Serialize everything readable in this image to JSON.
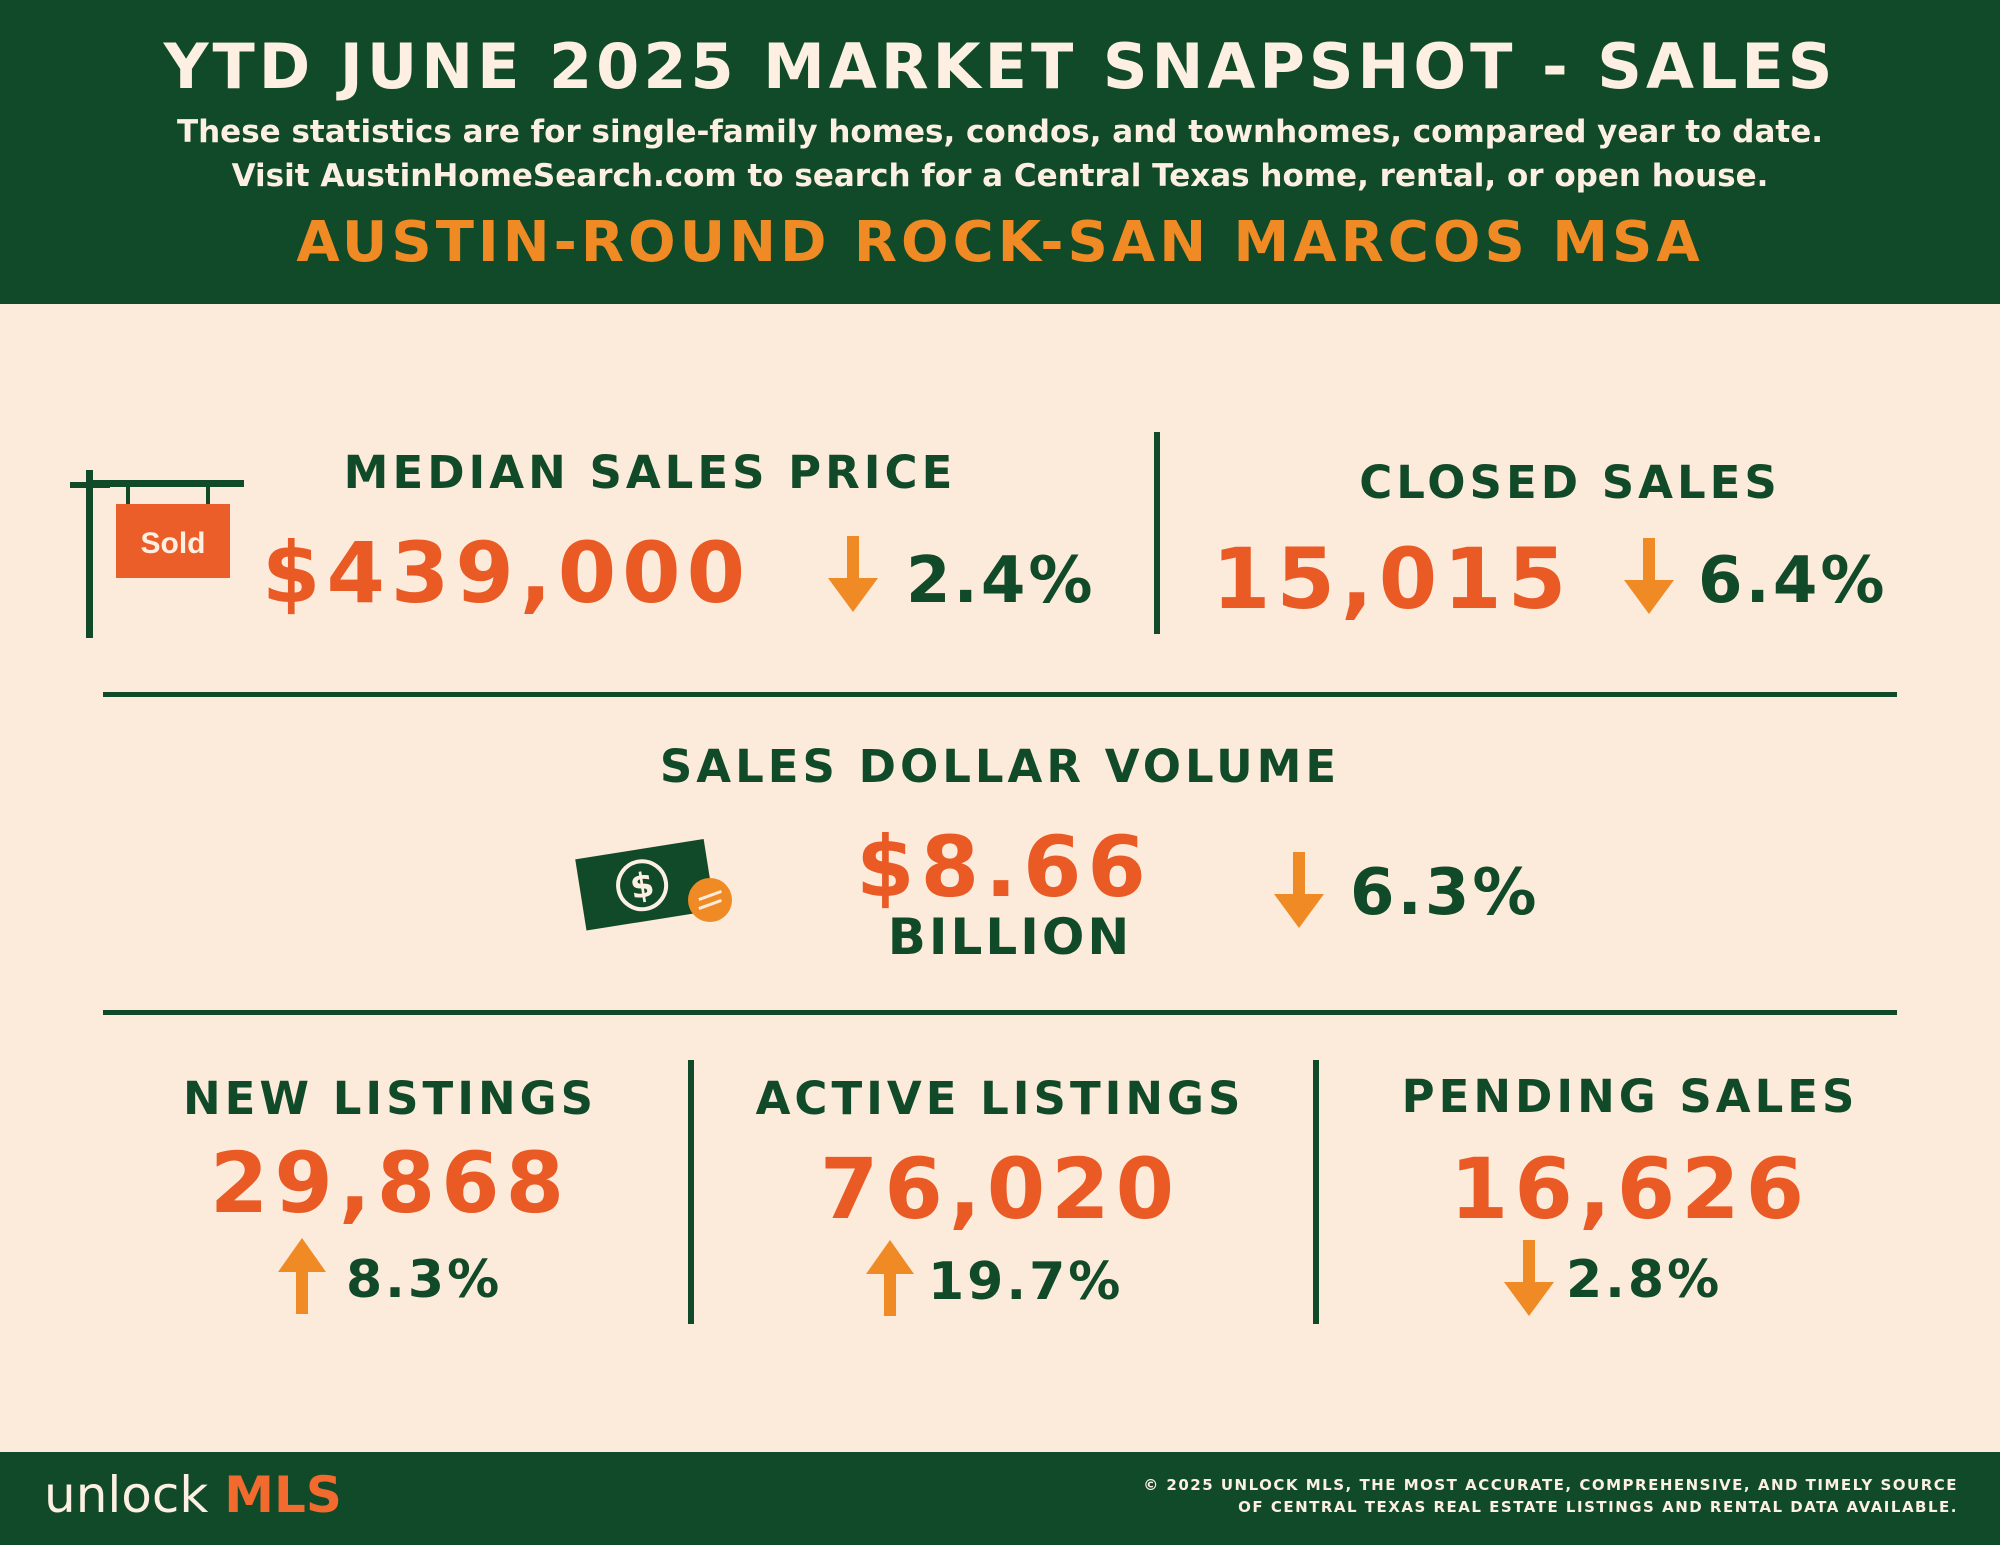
{
  "header": {
    "title": "YTD JUNE 2025 MARKET SNAPSHOT - SALES",
    "subtitle_line1": "These statistics are for single-family homes, condos, and townhomes, compared year to date.",
    "subtitle_line2": "Visit AustinHomeSearch.com to search for a Central Texas home, rental, or open house.",
    "region": "AUSTIN-ROUND ROCK-SAN MARCOS MSA"
  },
  "median_sales_price": {
    "label": "MEDIAN SALES PRICE",
    "value": "$439,000",
    "change": "2.4%",
    "direction": "down",
    "sign_text": "Sold",
    "icon": "sold-sign-icon"
  },
  "closed_sales": {
    "label": "CLOSED SALES",
    "value": "15,015",
    "change": "6.4%",
    "direction": "down"
  },
  "sales_dollar_volume": {
    "label": "SALES DOLLAR VOLUME",
    "value": "$8.66",
    "unit": "BILLION",
    "change": "6.3%",
    "direction": "down",
    "icon": "money-bill-icon"
  },
  "new_listings": {
    "label": "NEW LISTINGS",
    "value": "29,868",
    "change": "8.3%",
    "direction": "up"
  },
  "active_listings": {
    "label": "ACTIVE LISTINGS",
    "value": "76,020",
    "change": "19.7%",
    "direction": "up"
  },
  "pending_sales": {
    "label": "PENDING SALES",
    "value": "16,626",
    "change": "2.8%",
    "direction": "down"
  },
  "footer": {
    "logo_text": "unlock",
    "logo_accent": "MLS",
    "legal_line1": "© 2025 UNLOCK MLS, THE MOST ACCURATE, COMPREHENSIVE, AND TIMELY SOURCE",
    "legal_line2": "OF CENTRAL TEXAS REAL ESTATE LISTINGS AND RENTAL DATA AVAILABLE."
  },
  "colors": {
    "dark_green": "#114A28",
    "orange_red": "#E95A24",
    "arrow_orange": "#F08A24",
    "background": "#FCEADB"
  }
}
